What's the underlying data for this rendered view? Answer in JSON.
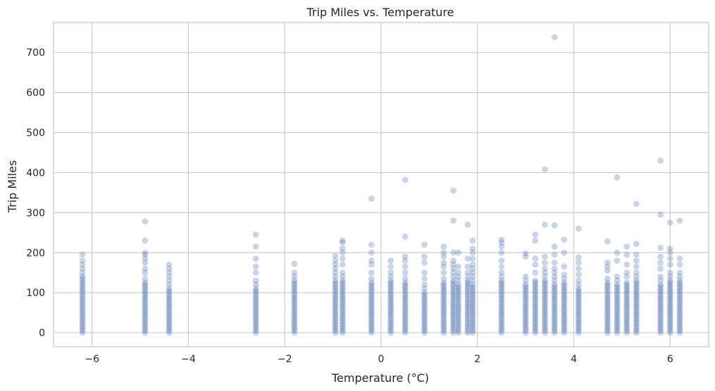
{
  "chart_data": {
    "type": "scatter",
    "title": "Trip Miles vs. Temperature",
    "xlabel": "Temperature (°C)",
    "ylabel": "Trip Miles",
    "xlim": [
      -6.8,
      6.8
    ],
    "ylim": [
      -35,
      775
    ],
    "xticks": [
      -6,
      -4,
      -2,
      0,
      2,
      4,
      6
    ],
    "yticks": [
      0,
      100,
      200,
      300,
      400,
      500,
      600,
      700
    ],
    "grid": true,
    "point_color": "#4c72b0",
    "point_opacity": 0.3,
    "columns": [
      {
        "x": -6.2,
        "values": [
          0,
          5,
          10,
          15,
          20,
          25,
          30,
          35,
          40,
          45,
          50,
          55,
          60,
          65,
          70,
          75,
          80,
          85,
          90,
          95,
          100,
          105,
          110,
          115,
          120,
          125,
          130,
          135,
          140,
          150,
          160,
          170,
          180,
          195
        ]
      },
      {
        "x": -4.9,
        "values": [
          0,
          5,
          10,
          15,
          20,
          25,
          30,
          35,
          40,
          45,
          50,
          55,
          60,
          65,
          70,
          75,
          80,
          85,
          90,
          95,
          100,
          105,
          110,
          115,
          120,
          125,
          135,
          150,
          160,
          175,
          185,
          195,
          200,
          230,
          278
        ]
      },
      {
        "x": -4.4,
        "values": [
          0,
          5,
          10,
          15,
          20,
          25,
          30,
          35,
          40,
          45,
          50,
          55,
          60,
          65,
          70,
          75,
          80,
          85,
          90,
          95,
          100,
          105,
          110,
          120,
          130,
          140,
          150,
          160,
          170
        ]
      },
      {
        "x": -2.6,
        "values": [
          0,
          5,
          10,
          15,
          20,
          25,
          30,
          35,
          40,
          45,
          50,
          55,
          60,
          65,
          70,
          75,
          80,
          85,
          90,
          95,
          100,
          105,
          110,
          120,
          130,
          150,
          165,
          185,
          215,
          245
        ]
      },
      {
        "x": -1.8,
        "values": [
          0,
          5,
          10,
          15,
          20,
          25,
          30,
          35,
          40,
          45,
          50,
          55,
          60,
          65,
          70,
          75,
          80,
          85,
          90,
          95,
          100,
          105,
          110,
          115,
          120,
          125,
          130,
          140,
          150,
          172
        ]
      },
      {
        "x": -0.95,
        "values": [
          0,
          5,
          10,
          15,
          20,
          25,
          30,
          35,
          40,
          45,
          50,
          55,
          60,
          65,
          70,
          75,
          80,
          85,
          90,
          95,
          100,
          105,
          110,
          115,
          120,
          125,
          130,
          140,
          150,
          160,
          170,
          180,
          192
        ]
      },
      {
        "x": -0.8,
        "values": [
          0,
          5,
          10,
          15,
          20,
          25,
          30,
          35,
          40,
          45,
          50,
          55,
          60,
          65,
          70,
          75,
          80,
          85,
          90,
          95,
          100,
          105,
          110,
          115,
          120,
          125,
          130,
          140,
          150,
          170,
          185,
          200,
          210,
          225,
          230
        ]
      },
      {
        "x": -0.2,
        "values": [
          0,
          5,
          10,
          15,
          20,
          25,
          30,
          35,
          40,
          45,
          50,
          55,
          60,
          65,
          70,
          75,
          80,
          85,
          90,
          95,
          100,
          105,
          110,
          115,
          120,
          125,
          135,
          150,
          170,
          180,
          200,
          220,
          335
        ]
      },
      {
        "x": 0.2,
        "values": [
          0,
          5,
          10,
          15,
          20,
          25,
          30,
          35,
          40,
          45,
          50,
          55,
          60,
          65,
          70,
          75,
          80,
          85,
          90,
          95,
          100,
          105,
          110,
          115,
          120,
          125,
          130,
          140,
          150,
          165,
          180
        ]
      },
      {
        "x": 0.5,
        "values": [
          0,
          5,
          10,
          15,
          20,
          25,
          30,
          35,
          40,
          45,
          50,
          55,
          60,
          65,
          70,
          75,
          80,
          85,
          90,
          95,
          100,
          105,
          110,
          115,
          120,
          125,
          135,
          150,
          165,
          180,
          190,
          240,
          382
        ]
      },
      {
        "x": 0.9,
        "values": [
          0,
          5,
          10,
          15,
          20,
          25,
          30,
          35,
          40,
          45,
          50,
          55,
          60,
          65,
          70,
          75,
          80,
          85,
          90,
          95,
          100,
          110,
          120,
          135,
          150,
          175,
          190,
          220
        ]
      },
      {
        "x": 1.3,
        "values": [
          0,
          5,
          10,
          15,
          20,
          25,
          30,
          35,
          40,
          45,
          50,
          55,
          60,
          65,
          70,
          75,
          80,
          85,
          90,
          95,
          100,
          105,
          110,
          115,
          120,
          125,
          135,
          150,
          165,
          175,
          190,
          200,
          215
        ]
      },
      {
        "x": 1.5,
        "values": [
          0,
          5,
          10,
          15,
          20,
          25,
          30,
          35,
          40,
          45,
          50,
          55,
          60,
          65,
          70,
          75,
          80,
          85,
          90,
          95,
          100,
          105,
          110,
          115,
          120,
          125,
          130,
          140,
          150,
          160,
          170,
          180,
          200,
          280,
          355
        ]
      },
      {
        "x": 1.6,
        "values": [
          0,
          5,
          10,
          15,
          20,
          25,
          30,
          35,
          40,
          45,
          50,
          55,
          60,
          65,
          70,
          75,
          80,
          85,
          90,
          95,
          100,
          105,
          110,
          115,
          120,
          130,
          140,
          150,
          165,
          200
        ]
      },
      {
        "x": 1.8,
        "values": [
          0,
          5,
          10,
          15,
          20,
          25,
          30,
          35,
          40,
          45,
          50,
          55,
          60,
          65,
          70,
          75,
          80,
          85,
          90,
          95,
          100,
          105,
          110,
          115,
          120,
          125,
          130,
          140,
          150,
          165,
          185,
          270
        ]
      },
      {
        "x": 1.9,
        "values": [
          0,
          5,
          10,
          15,
          20,
          25,
          30,
          35,
          40,
          45,
          50,
          55,
          60,
          65,
          70,
          75,
          80,
          85,
          90,
          95,
          100,
          105,
          110,
          115,
          120,
          130,
          140,
          150,
          160,
          170,
          185,
          200,
          210,
          230
        ]
      },
      {
        "x": 2.5,
        "values": [
          0,
          5,
          10,
          15,
          20,
          25,
          30,
          35,
          40,
          45,
          50,
          55,
          60,
          65,
          70,
          75,
          80,
          85,
          90,
          95,
          100,
          105,
          110,
          115,
          120,
          125,
          130,
          140,
          150,
          165,
          180,
          200,
          215,
          225,
          232
        ]
      },
      {
        "x": 3.0,
        "values": [
          0,
          5,
          10,
          15,
          20,
          25,
          30,
          35,
          40,
          45,
          50,
          55,
          60,
          65,
          70,
          75,
          80,
          85,
          90,
          95,
          100,
          105,
          110,
          115,
          120,
          130,
          140,
          190,
          198
        ]
      },
      {
        "x": 3.2,
        "values": [
          0,
          5,
          10,
          15,
          20,
          25,
          30,
          35,
          40,
          45,
          50,
          55,
          60,
          65,
          70,
          75,
          80,
          85,
          90,
          95,
          100,
          105,
          110,
          115,
          120,
          125,
          130,
          150,
          170,
          185,
          230,
          245
        ]
      },
      {
        "x": 3.4,
        "values": [
          0,
          5,
          10,
          15,
          20,
          25,
          30,
          35,
          40,
          45,
          50,
          55,
          60,
          65,
          70,
          75,
          80,
          85,
          90,
          95,
          100,
          105,
          110,
          115,
          120,
          125,
          130,
          140,
          150,
          160,
          175,
          190,
          270,
          408
        ]
      },
      {
        "x": 3.6,
        "values": [
          0,
          5,
          10,
          15,
          20,
          25,
          30,
          35,
          40,
          45,
          50,
          55,
          60,
          65,
          70,
          75,
          80,
          85,
          90,
          95,
          100,
          105,
          110,
          115,
          120,
          130,
          140,
          150,
          160,
          175,
          195,
          215,
          268,
          738
        ]
      },
      {
        "x": 3.8,
        "values": [
          0,
          5,
          10,
          15,
          20,
          25,
          30,
          35,
          40,
          45,
          50,
          55,
          60,
          65,
          70,
          75,
          80,
          85,
          90,
          95,
          100,
          105,
          110,
          115,
          120,
          125,
          135,
          145,
          165,
          200,
          232
        ]
      },
      {
        "x": 4.1,
        "values": [
          0,
          5,
          10,
          15,
          20,
          25,
          30,
          35,
          40,
          45,
          50,
          55,
          60,
          65,
          70,
          75,
          80,
          85,
          90,
          95,
          100,
          105,
          110,
          120,
          130,
          145,
          160,
          175,
          188,
          260
        ]
      },
      {
        "x": 4.7,
        "values": [
          0,
          5,
          10,
          15,
          20,
          25,
          30,
          35,
          40,
          45,
          50,
          55,
          60,
          65,
          70,
          75,
          80,
          85,
          90,
          95,
          100,
          105,
          110,
          115,
          120,
          125,
          135,
          155,
          165,
          175,
          228
        ]
      },
      {
        "x": 4.9,
        "values": [
          0,
          5,
          10,
          15,
          20,
          25,
          30,
          35,
          40,
          45,
          50,
          55,
          60,
          65,
          70,
          75,
          80,
          85,
          90,
          95,
          100,
          105,
          110,
          115,
          120,
          130,
          140,
          180,
          200,
          388
        ]
      },
      {
        "x": 5.1,
        "values": [
          0,
          5,
          10,
          15,
          20,
          25,
          30,
          35,
          40,
          45,
          50,
          55,
          60,
          65,
          70,
          75,
          80,
          85,
          90,
          95,
          100,
          105,
          110,
          115,
          120,
          125,
          140,
          150,
          170,
          195,
          215
        ]
      },
      {
        "x": 5.3,
        "values": [
          0,
          5,
          10,
          15,
          20,
          25,
          30,
          35,
          40,
          45,
          50,
          55,
          60,
          65,
          70,
          75,
          80,
          85,
          90,
          95,
          100,
          105,
          110,
          115,
          120,
          125,
          130,
          140,
          150,
          165,
          180,
          195,
          222,
          322
        ]
      },
      {
        "x": 5.8,
        "values": [
          0,
          5,
          10,
          15,
          20,
          25,
          30,
          35,
          40,
          45,
          50,
          55,
          60,
          65,
          70,
          75,
          80,
          85,
          90,
          95,
          100,
          105,
          110,
          115,
          120,
          130,
          140,
          160,
          175,
          190,
          212,
          295,
          430
        ]
      },
      {
        "x": 6.0,
        "values": [
          0,
          5,
          10,
          15,
          20,
          25,
          30,
          35,
          40,
          45,
          50,
          55,
          60,
          65,
          70,
          75,
          80,
          85,
          90,
          95,
          100,
          105,
          110,
          115,
          120,
          125,
          130,
          140,
          150,
          170,
          185,
          200,
          210,
          275
        ]
      },
      {
        "x": 6.2,
        "values": [
          0,
          5,
          10,
          15,
          20,
          25,
          30,
          35,
          40,
          45,
          50,
          55,
          60,
          65,
          70,
          75,
          80,
          85,
          90,
          95,
          100,
          105,
          110,
          115,
          120,
          125,
          130,
          140,
          150,
          170,
          185,
          280
        ]
      }
    ]
  }
}
